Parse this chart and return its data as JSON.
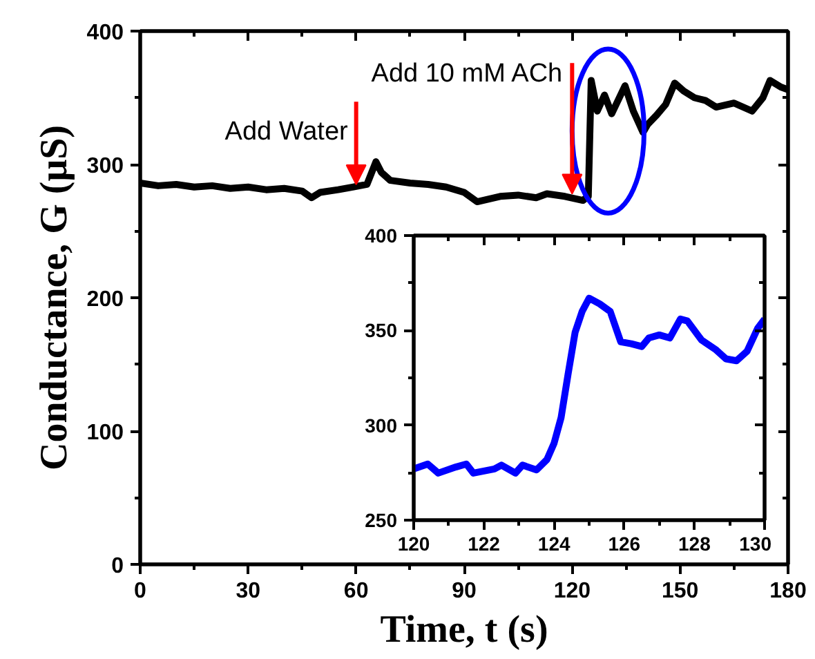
{
  "chart_data": [
    {
      "type": "line",
      "xlabel": "Time, t (s)",
      "ylabel": "Conductance, G (μS)",
      "xlim": [
        0,
        180
      ],
      "xticks": [
        0,
        30,
        60,
        90,
        120,
        150,
        180
      ],
      "ylim": [
        0,
        400
      ],
      "yticks": [
        0,
        100,
        200,
        300,
        400
      ],
      "series": [
        {
          "color": "#000000",
          "x": [
            0,
            5,
            10,
            15,
            20,
            25,
            30,
            35,
            40,
            45,
            47.6,
            50,
            55,
            59,
            63,
            65.5,
            67,
            69.5,
            75,
            80,
            85,
            90,
            93.6,
            100,
            105,
            110,
            113,
            118,
            123,
            124.5,
            125.3,
            127,
            129,
            131,
            134.7,
            137,
            139.7,
            141,
            143.5,
            146,
            148.5,
            151,
            154,
            157,
            160,
            165,
            170,
            173,
            175,
            178,
            180
          ],
          "values": [
            286,
            284,
            285,
            283,
            284,
            282,
            283,
            281,
            282,
            280,
            275,
            279,
            281,
            283,
            285,
            302,
            294,
            288,
            286,
            285,
            283,
            279,
            272,
            276,
            277,
            275,
            278,
            276,
            273,
            276,
            363,
            340,
            352,
            338,
            359,
            340,
            324,
            330,
            337,
            345,
            361,
            355,
            350,
            348,
            343,
            346,
            340,
            350,
            363,
            358,
            356
          ]
        }
      ],
      "annotations": [
        {
          "text": "Add Water",
          "x": 60,
          "y": 285
        },
        {
          "text": "Add 10 mM ACh",
          "x": 120,
          "y": 278
        }
      ]
    },
    {
      "type": "line",
      "xlim": [
        120,
        130
      ],
      "xticks": [
        120,
        122,
        124,
        126,
        128,
        130
      ],
      "ylim": [
        250,
        400
      ],
      "yticks": [
        250,
        300,
        350,
        400
      ],
      "series": [
        {
          "color": "#0000ff",
          "x": [
            120,
            120.4,
            120.7,
            121.2,
            121.5,
            121.7,
            122.3,
            122.5,
            122.9,
            123.1,
            123.5,
            123.8,
            124.0,
            124.2,
            124.4,
            124.6,
            124.8,
            125.0,
            125.3,
            125.6,
            125.9,
            126.2,
            126.5,
            126.7,
            127.0,
            127.3,
            127.6,
            127.8,
            128.2,
            128.6,
            128.9,
            129.2,
            129.5,
            129.8,
            130.0
          ],
          "values": [
            277,
            279.6,
            274.8,
            278,
            279.6,
            274.8,
            277,
            279,
            274.8,
            279,
            276.5,
            282,
            290.5,
            304,
            327,
            349,
            360,
            367,
            364,
            360,
            344,
            343,
            341.5,
            346,
            347.6,
            346,
            356,
            355,
            345,
            340,
            335,
            334,
            339,
            351,
            356
          ]
        }
      ]
    }
  ]
}
